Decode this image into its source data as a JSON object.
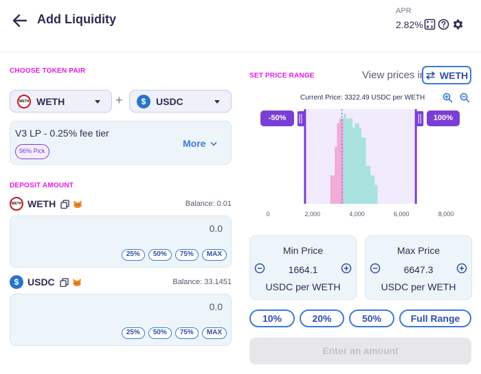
{
  "header": {
    "title": "Add Liquidity",
    "apr_label": "APR",
    "apr_value": "2.82%",
    "icons": [
      "back-arrow-icon",
      "calculator-icon",
      "help-icon",
      "gear-icon"
    ]
  },
  "token_pair": {
    "label": "CHOOSE TOKEN PAIR",
    "token_a": {
      "symbol": "WETH",
      "logo_text": "WETH"
    },
    "plus": "+",
    "token_b": {
      "symbol": "USDC",
      "logo_text": "$"
    }
  },
  "fee_tier": {
    "text": "V3 LP - 0.25% fee tier",
    "badge": "96% Pick",
    "more_label": "More"
  },
  "deposit": {
    "label": "DEPOSIT AMOUNT",
    "tokens": [
      {
        "symbol": "WETH",
        "balance": "Balance: 0.01",
        "amount": "0.0",
        "percent_buttons": [
          "25%",
          "50%",
          "75%",
          "MAX"
        ]
      },
      {
        "symbol": "USDC",
        "balance": "Balance: 33.1451",
        "amount": "0.0",
        "percent_buttons": [
          "25%",
          "50%",
          "75%",
          "MAX"
        ]
      }
    ]
  },
  "price_range": {
    "label": "SET PRICE RANGE",
    "view_prices_label": "View prices in",
    "view_token": "WETH",
    "current_price_text": "Current Price: 3322.49  USDC per WETH",
    "min_handle_label": "-50%",
    "max_handle_label": "100%",
    "min_card": {
      "title": "Min Price",
      "value": "1664.1",
      "unit": "USDC per WETH"
    },
    "max_card": {
      "title": "Max Price",
      "value": "6647.3",
      "unit": "USDC per WETH"
    },
    "presets": [
      "10%",
      "20%",
      "50%",
      "Full Range"
    ],
    "submit_label": "Enter an amount"
  },
  "chart_data": {
    "type": "area",
    "x_ticks": [
      "0",
      "2,000",
      "4,000",
      "6,000",
      "8,000"
    ],
    "xlim": [
      0,
      8000
    ],
    "current_price": 3322.49,
    "range_min": 1664.1,
    "range_max": 6647.3,
    "liquidity": [
      {
        "x": 2800,
        "y": 0.3
      },
      {
        "x": 3000,
        "y": 0.6
      },
      {
        "x": 3100,
        "y": 0.85
      },
      {
        "x": 3200,
        "y": 0.9
      },
      {
        "x": 3300,
        "y": 0.9
      },
      {
        "x": 3400,
        "y": 0.95
      },
      {
        "x": 3500,
        "y": 0.9
      },
      {
        "x": 3600,
        "y": 0.9
      },
      {
        "x": 3700,
        "y": 0.9
      },
      {
        "x": 3800,
        "y": 0.8
      },
      {
        "x": 3900,
        "y": 0.85
      },
      {
        "x": 4000,
        "y": 0.85
      },
      {
        "x": 4100,
        "y": 0.8
      },
      {
        "x": 4200,
        "y": 0.7
      },
      {
        "x": 4400,
        "y": 0.4
      },
      {
        "x": 4600,
        "y": 0.3
      },
      {
        "x": 4800,
        "y": 0.2
      }
    ],
    "colors": {
      "below_current": "#f2a0cf",
      "above_current": "#9be0d8",
      "range_fill": "#f1ebfd",
      "handle": "#7a3ed6",
      "current_line": "#5b8ee6"
    },
    "grid": false
  }
}
